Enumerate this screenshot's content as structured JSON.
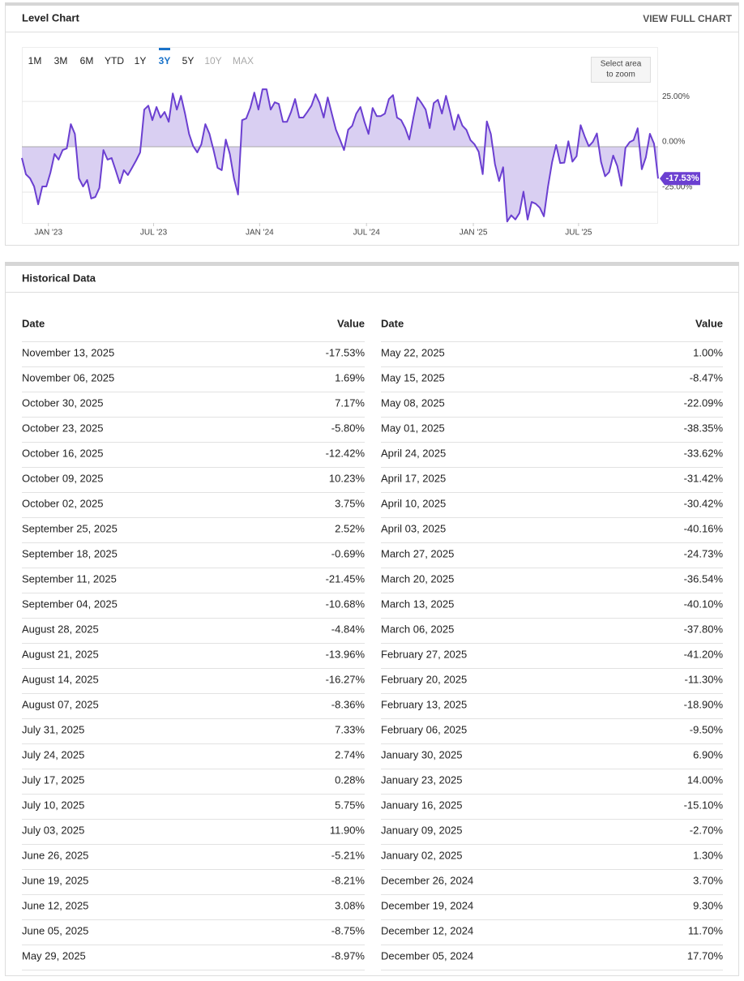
{
  "level_chart": {
    "title": "Level Chart",
    "link": "VIEW FULL CHART",
    "range_buttons": [
      {
        "label": "1M",
        "state": "normal"
      },
      {
        "label": "3M",
        "state": "normal"
      },
      {
        "label": "6M",
        "state": "normal"
      },
      {
        "label": "YTD",
        "state": "normal"
      },
      {
        "label": "1Y",
        "state": "normal"
      },
      {
        "label": "3Y",
        "state": "active"
      },
      {
        "label": "5Y",
        "state": "normal"
      },
      {
        "label": "10Y",
        "state": "disabled"
      },
      {
        "label": "MAX",
        "state": "disabled"
      }
    ],
    "zoom_hint": [
      "Select area",
      "to zoom"
    ],
    "chart_data": {
      "type": "line",
      "color": "#6b3fd1",
      "fill": "#d9cff2",
      "xlim": [
        0,
        156
      ],
      "xticks": [
        {
          "value": 6.5,
          "label": "JAN '23"
        },
        {
          "value": 32.3,
          "label": "JUL '23"
        },
        {
          "value": 58.3,
          "label": "JAN '24"
        },
        {
          "value": 84.5,
          "label": "JUL '24"
        },
        {
          "value": 110.7,
          "label": "JAN '25"
        },
        {
          "value": 136.5,
          "label": "JUL '25"
        }
      ],
      "ylim": [
        -42,
        55
      ],
      "yticks": [
        {
          "value": -25,
          "label": "-25.00%"
        },
        {
          "value": 0,
          "label": "0.00%"
        },
        {
          "value": 25,
          "label": "25.00%"
        }
      ],
      "grid": true,
      "current_label": "-17.53%",
      "values": [
        -6.2,
        -15.2,
        -17.4,
        -21.9,
        -31.7,
        -21.9,
        -21.9,
        -14.3,
        -4.0,
        -7.1,
        -1.8,
        -0.9,
        12.5,
        7.1,
        -17.4,
        -21.9,
        -18.3,
        -28.5,
        -27.7,
        -22.7,
        -1.8,
        -7.1,
        -6.2,
        -12.9,
        -20.1,
        -12.9,
        -15.6,
        -11.6,
        -7.6,
        -3.1,
        20.5,
        22.7,
        14.7,
        21.9,
        16.1,
        19.2,
        13.8,
        29.4,
        20.5,
        28.1,
        18.3,
        7.1,
        0.4,
        -3.1,
        1.3,
        12.5,
        7.1,
        -1.8,
        -11.6,
        -12.9,
        4.0,
        -4.0,
        -17.4,
        -26.3,
        14.7,
        15.6,
        21.4,
        29.9,
        20.5,
        31.7,
        31.7,
        20.5,
        24.5,
        23.6,
        13.8,
        13.8,
        19.2,
        26.3,
        16.1,
        16.1,
        19.2,
        22.7,
        29.0,
        24.1,
        16.1,
        27.2,
        18.3,
        9.4,
        4.0,
        -1.8,
        9.4,
        11.6,
        18.3,
        21.9,
        13.8,
        7.1,
        21.4,
        16.9,
        16.9,
        18.3,
        26.3,
        28.5,
        16.1,
        14.7,
        10.3,
        4.0,
        16.1,
        27.2,
        24.1,
        20.5,
        10.3,
        24.1,
        25.9,
        18.3,
        28.1,
        19.2,
        9.4,
        17.7,
        11.7,
        9.3,
        3.7,
        1.3,
        -2.7,
        -15.1,
        14.0,
        6.9,
        -9.5,
        -18.9,
        -11.3,
        -41.2,
        -37.8,
        -40.1,
        -36.54,
        -24.73,
        -40.16,
        -30.42,
        -31.42,
        -33.62,
        -38.35,
        -22.09,
        -8.47,
        1.0,
        -8.97,
        -8.75,
        3.08,
        -8.21,
        -5.21,
        11.9,
        5.75,
        0.28,
        2.74,
        7.33,
        -8.36,
        -16.27,
        -13.96,
        -4.84,
        -10.68,
        -21.45,
        -0.69,
        2.52,
        3.75,
        10.23,
        -12.42,
        -5.8,
        7.17,
        1.69,
        -17.53
      ]
    }
  },
  "historical_data": {
    "title": "Historical Data",
    "headers": [
      "Date",
      "Value"
    ],
    "left": [
      [
        "November 13, 2025",
        "-17.53%"
      ],
      [
        "November 06, 2025",
        "1.69%"
      ],
      [
        "October 30, 2025",
        "7.17%"
      ],
      [
        "October 23, 2025",
        "-5.80%"
      ],
      [
        "October 16, 2025",
        "-12.42%"
      ],
      [
        "October 09, 2025",
        "10.23%"
      ],
      [
        "October 02, 2025",
        "3.75%"
      ],
      [
        "September 25, 2025",
        "2.52%"
      ],
      [
        "September 18, 2025",
        "-0.69%"
      ],
      [
        "September 11, 2025",
        "-21.45%"
      ],
      [
        "September 04, 2025",
        "-10.68%"
      ],
      [
        "August 28, 2025",
        "-4.84%"
      ],
      [
        "August 21, 2025",
        "-13.96%"
      ],
      [
        "August 14, 2025",
        "-16.27%"
      ],
      [
        "August 07, 2025",
        "-8.36%"
      ],
      [
        "July 31, 2025",
        "7.33%"
      ],
      [
        "July 24, 2025",
        "2.74%"
      ],
      [
        "July 17, 2025",
        "0.28%"
      ],
      [
        "July 10, 2025",
        "5.75%"
      ],
      [
        "July 03, 2025",
        "11.90%"
      ],
      [
        "June 26, 2025",
        "-5.21%"
      ],
      [
        "June 19, 2025",
        "-8.21%"
      ],
      [
        "June 12, 2025",
        "3.08%"
      ],
      [
        "June 05, 2025",
        "-8.75%"
      ],
      [
        "May 29, 2025",
        "-8.97%"
      ]
    ],
    "right": [
      [
        "May 22, 2025",
        "1.00%"
      ],
      [
        "May 15, 2025",
        "-8.47%"
      ],
      [
        "May 08, 2025",
        "-22.09%"
      ],
      [
        "May 01, 2025",
        "-38.35%"
      ],
      [
        "April 24, 2025",
        "-33.62%"
      ],
      [
        "April 17, 2025",
        "-31.42%"
      ],
      [
        "April 10, 2025",
        "-30.42%"
      ],
      [
        "April 03, 2025",
        "-40.16%"
      ],
      [
        "March 27, 2025",
        "-24.73%"
      ],
      [
        "March 20, 2025",
        "-36.54%"
      ],
      [
        "March 13, 2025",
        "-40.10%"
      ],
      [
        "March 06, 2025",
        "-37.80%"
      ],
      [
        "February 27, 2025",
        "-41.20%"
      ],
      [
        "February 20, 2025",
        "-11.30%"
      ],
      [
        "February 13, 2025",
        "-18.90%"
      ],
      [
        "February 06, 2025",
        "-9.50%"
      ],
      [
        "January 30, 2025",
        "6.90%"
      ],
      [
        "January 23, 2025",
        "14.00%"
      ],
      [
        "January 16, 2025",
        "-15.10%"
      ],
      [
        "January 09, 2025",
        "-2.70%"
      ],
      [
        "January 02, 2025",
        "1.30%"
      ],
      [
        "December 26, 2024",
        "3.70%"
      ],
      [
        "December 19, 2024",
        "9.30%"
      ],
      [
        "December 12, 2024",
        "11.70%"
      ],
      [
        "December 05, 2024",
        "17.70%"
      ]
    ]
  }
}
